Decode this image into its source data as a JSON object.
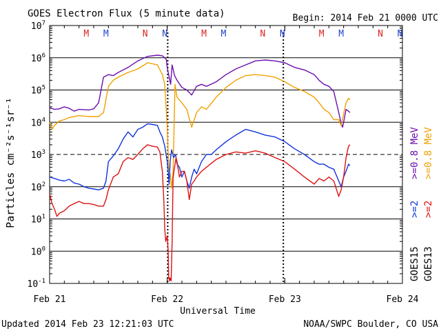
{
  "chart_data": {
    "type": "line",
    "title": "GOES Electron Flux (5 minute data)",
    "begin_label": "Begin: 2014 Feb 21 0000 UTC",
    "xlabel": "Universal Time",
    "ylabel": "Particles cm⁻²s⁻¹sr⁻¹",
    "y_scale": "log",
    "ylim": [
      0.1,
      10000000
    ],
    "xlim": [
      0,
      72
    ],
    "x_ticks": [
      {
        "value": 0,
        "label": "Feb 21"
      },
      {
        "value": 24,
        "label": "Feb 22"
      },
      {
        "value": 48,
        "label": "Feb 23"
      },
      {
        "value": 72,
        "label": "Feb 24"
      }
    ],
    "y_ticks": [
      {
        "value": 0.1,
        "base": "10",
        "exp": "-1"
      },
      {
        "value": 1,
        "base": "10",
        "exp": "0"
      },
      {
        "value": 10,
        "base": "10",
        "exp": "1"
      },
      {
        "value": 100,
        "base": "10",
        "exp": "2"
      },
      {
        "value": 1000,
        "base": "10",
        "exp": "3"
      },
      {
        "value": 10000,
        "base": "10",
        "exp": "4"
      },
      {
        "value": 100000,
        "base": "10",
        "exp": "5"
      },
      {
        "value": 1000000,
        "base": "10",
        "exp": "6"
      },
      {
        "value": 10000000,
        "base": "10",
        "exp": "7"
      }
    ],
    "threshold": {
      "value": 1000,
      "style": "dashed"
    },
    "grid": "horizontal at each decade",
    "x_unit": "hours since Feb 21 0000 UTC",
    "mn_markers": [
      {
        "label": "M",
        "x": 7.5,
        "color": "#dd2222"
      },
      {
        "label": "M",
        "x": 11.5,
        "color": "#2244cc"
      },
      {
        "label": "N",
        "x": 19.5,
        "color": "#dd2222"
      },
      {
        "label": "N",
        "x": 23.5,
        "color": "#2244cc"
      },
      {
        "label": "M",
        "x": 31.5,
        "color": "#dd2222"
      },
      {
        "label": "M",
        "x": 35.5,
        "color": "#2244cc"
      },
      {
        "label": "N",
        "x": 43.5,
        "color": "#dd2222"
      },
      {
        "label": "N",
        "x": 47.5,
        "color": "#2244cc"
      },
      {
        "label": "M",
        "x": 55.5,
        "color": "#dd2222"
      },
      {
        "label": "M",
        "x": 59.5,
        "color": "#2244cc"
      },
      {
        "label": "N",
        "x": 67.5,
        "color": "#dd2222"
      },
      {
        "label": "N",
        "x": 71.5,
        "color": "#2244cc"
      }
    ],
    "tick_marks_x": [
      24.1,
      47.7
    ],
    "series": [
      {
        "name": "GOES15 >=0.8 MeV",
        "color": "#6a0dad",
        "x": [
          0,
          1,
          2,
          3,
          4,
          5,
          6,
          8,
          9,
          10,
          11,
          12,
          13,
          14,
          16,
          18,
          20,
          22,
          23,
          23.8,
          24,
          24.3,
          24.7,
          25,
          25.5,
          26,
          27,
          28,
          29,
          30,
          31,
          32,
          34,
          36,
          38,
          40,
          42,
          44,
          46,
          48,
          50,
          52,
          54,
          55,
          56,
          57,
          58,
          59,
          59.5,
          59.8,
          60.1,
          60.5,
          61,
          61.3
        ],
        "y": [
          28000,
          25000,
          26000,
          30000,
          27000,
          22000,
          25000,
          24000,
          26000,
          40000,
          250000,
          300000,
          280000,
          350000,
          500000,
          800000,
          1100000,
          1200000,
          1150000,
          900000,
          500000,
          300000,
          150000,
          600000,
          280000,
          200000,
          120000,
          100000,
          70000,
          130000,
          150000,
          130000,
          180000,
          300000,
          450000,
          600000,
          800000,
          850000,
          800000,
          700000,
          500000,
          420000,
          300000,
          200000,
          150000,
          130000,
          90000,
          20000,
          9000,
          7000,
          12000,
          25000,
          22000,
          20000
        ]
      },
      {
        "name": "GOES13 >=0.8 MeV",
        "color": "#f0a000",
        "x": [
          0,
          0.5,
          1,
          2,
          3,
          4,
          6,
          8,
          10,
          11,
          12,
          13,
          14,
          16,
          18,
          20,
          22,
          23,
          23.5,
          24,
          24.3,
          24.6,
          24.9,
          25.2,
          25.6,
          26,
          27,
          28,
          29,
          30,
          31,
          32,
          34,
          36,
          38,
          40,
          42,
          44,
          46,
          48,
          50,
          52,
          54,
          55,
          56,
          57,
          58,
          59,
          59.5,
          60,
          60.5,
          61,
          61.3
        ],
        "y": [
          10000,
          6000,
          8000,
          11000,
          12000,
          14000,
          16000,
          15000,
          15000,
          20000,
          130000,
          200000,
          250000,
          350000,
          450000,
          700000,
          600000,
          300000,
          150000,
          7000,
          400,
          250,
          90,
          300,
          150000,
          60000,
          40000,
          25000,
          7000,
          20000,
          30000,
          25000,
          60000,
          120000,
          200000,
          280000,
          300000,
          280000,
          250000,
          180000,
          120000,
          90000,
          60000,
          40000,
          25000,
          20000,
          12000,
          12000,
          8000,
          18000,
          40000,
          55000,
          50000
        ]
      },
      {
        "name": "GOES15 >=2 MeV",
        "color": "#1133dd",
        "x": [
          0,
          1,
          2,
          3,
          4,
          5,
          6,
          7,
          8,
          9,
          10,
          11,
          11.5,
          12,
          13,
          14,
          15,
          16,
          17,
          18,
          19,
          20,
          21,
          22,
          22.5,
          23,
          23.5,
          24,
          24.2,
          24.4,
          24.6,
          24.9,
          25.3,
          25.7,
          26,
          26.5,
          27,
          27.5,
          28,
          28.5,
          29,
          29.5,
          30,
          31,
          32,
          33,
          34,
          36,
          38,
          40,
          42,
          44,
          46,
          48,
          50,
          52,
          54,
          55,
          56,
          57,
          58,
          59,
          59.5,
          60,
          60.5,
          61,
          61.3
        ],
        "y": [
          200,
          180,
          160,
          150,
          170,
          130,
          120,
          100,
          90,
          85,
          80,
          90,
          150,
          600,
          900,
          1500,
          3000,
          5000,
          3500,
          6000,
          7000,
          9000,
          8500,
          8000,
          5000,
          3500,
          1800,
          600,
          300,
          120,
          600,
          1400,
          800,
          1000,
          500,
          400,
          200,
          300,
          150,
          90,
          200,
          350,
          250,
          600,
          1000,
          1000,
          1400,
          2500,
          4000,
          6000,
          5000,
          4000,
          3500,
          2500,
          1500,
          1000,
          600,
          500,
          500,
          400,
          350,
          150,
          100,
          200,
          300,
          500,
          450
        ]
      },
      {
        "name": "GOES13 >=2 MeV",
        "color": "#dd1111",
        "x": [
          0,
          0.5,
          1,
          1.5,
          2,
          3,
          4,
          5,
          6,
          7,
          8,
          9,
          10,
          11,
          11.5,
          12,
          13,
          14,
          15,
          16,
          17,
          18,
          19,
          20,
          21,
          22,
          22.5,
          23,
          23.3,
          23.5,
          23.7,
          24,
          24.2,
          24.3,
          24.5,
          24.6,
          24.8,
          25,
          25.2,
          25.5,
          25.8,
          26,
          26.5,
          27,
          27.5,
          28,
          28.5,
          29,
          29.5,
          30,
          31,
          32,
          34,
          36,
          38,
          40,
          42,
          44,
          46,
          48,
          50,
          52,
          54,
          55,
          56,
          57,
          58,
          59,
          59.5,
          60,
          60.5,
          61,
          61.3
        ],
        "y": [
          60,
          30,
          20,
          12,
          15,
          18,
          25,
          30,
          35,
          30,
          30,
          28,
          25,
          25,
          40,
          80,
          200,
          250,
          600,
          800,
          700,
          1000,
          1500,
          2000,
          1800,
          1700,
          1200,
          300,
          40,
          5,
          2,
          3,
          1,
          0.15,
          0.12,
          0.15,
          0.12,
          2,
          200,
          400,
          800,
          600,
          200,
          300,
          300,
          150,
          40,
          120,
          150,
          200,
          300,
          400,
          700,
          1000,
          1200,
          1100,
          1300,
          1100,
          800,
          600,
          350,
          200,
          120,
          180,
          150,
          200,
          150,
          50,
          80,
          200,
          800,
          1800,
          2000
        ]
      }
    ],
    "legend": {
      "placement": "right-vertical",
      "groups": [
        {
          "label": "GOES15",
          "items": [
            {
              "text": ">=2",
              "color": "#1133dd"
            },
            {
              "text": ">=0.8 MeV",
              "color": "#6a0dad"
            }
          ]
        },
        {
          "label": "GOES13",
          "items": [
            {
              "text": ">=2",
              "color": "#dd1111"
            },
            {
              "text": ">=0.8 MeV",
              "color": "#f0a000"
            }
          ]
        }
      ]
    }
  },
  "footer": {
    "updated": "Updated 2014 Feb 23 12:21:03 UTC",
    "credit": "NOAA/SWPC Boulder, CO USA"
  }
}
